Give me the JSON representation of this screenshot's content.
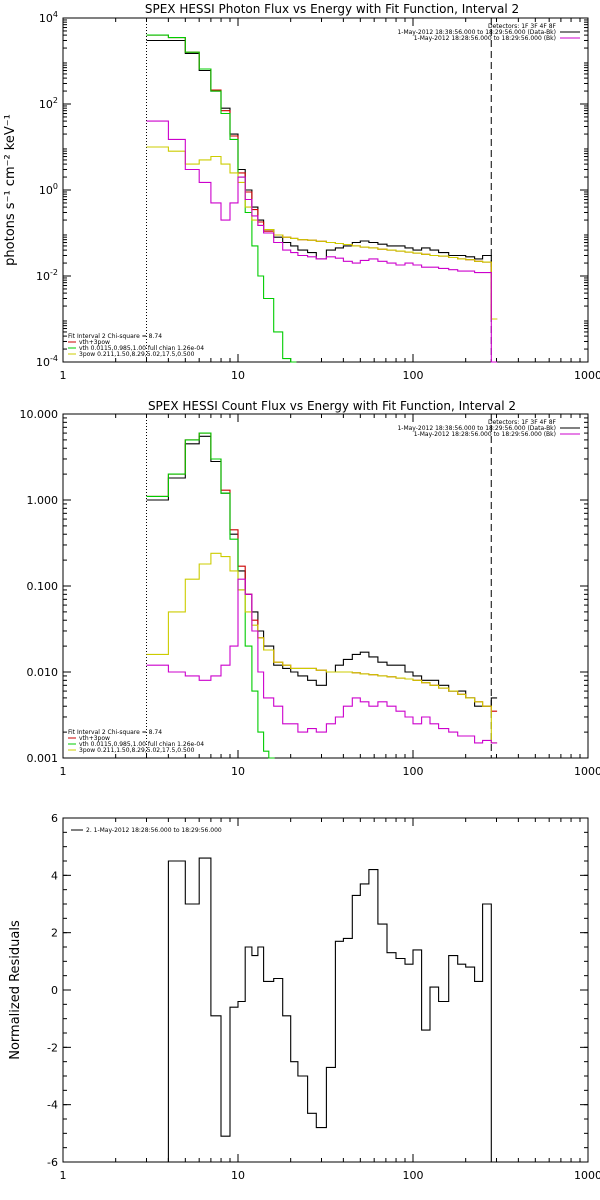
{
  "chart_data": [
    {
      "type": "line",
      "title": "SPEX HESSI Photon Flux vs Energy with Fit Function, Interval 2",
      "ylabel": "photons s⁻¹ cm⁻² keV⁻¹",
      "xlabel": "",
      "xscale": "log",
      "yscale": "log",
      "xlim": [
        1,
        1000
      ],
      "ylim": [
        0.0001,
        10000
      ],
      "x_ticks": [
        "1",
        "10",
        "100",
        "1000"
      ],
      "y_ticks": [
        {
          "value": 0.0001,
          "base": "10",
          "exp": "-4"
        },
        {
          "value": 0.01,
          "base": "10",
          "exp": "-2"
        },
        {
          "value": 1,
          "base": "10",
          "exp": "0"
        },
        {
          "value": 100,
          "base": "10",
          "exp": "2"
        },
        {
          "value": 10000,
          "base": "10",
          "exp": "4"
        }
      ],
      "vlines": [
        {
          "x": 3,
          "style": "dotted",
          "color": "#000000"
        },
        {
          "x": 280,
          "style": "dashed",
          "color": "#000000"
        }
      ],
      "legend_top": [
        {
          "text": "Detectors: 1F 3F 4F 8F",
          "color": ""
        },
        {
          "text": "1-May-2012 18:38:56.000 to 18:29:56.000 (Data-Bk)",
          "color": "#000000"
        },
        {
          "text": "1-May-2012 18:28:56.000 to 18:29:56.000 (Bk)",
          "color": "#cc00cc"
        }
      ],
      "legend_bottom": [
        {
          "text": "Fit Interval 2   Chi-square = 8.74",
          "color": ""
        },
        {
          "text": "vth+3pow",
          "color": "#cc0000"
        },
        {
          "text": "vth 0.0115,0.985,1.00  full chian 1.26e-04",
          "color": "#00cc00"
        },
        {
          "text": "3pow 0.211,1.50,8.29,5.02,17.5,0.500",
          "color": "#cccc00"
        }
      ],
      "series": [
        {
          "name": "Data-Bk",
          "color": "#000000",
          "x": [
            3,
            4,
            5,
            6,
            7,
            8,
            9,
            10,
            11,
            12,
            13,
            14,
            16,
            18,
            20,
            22,
            25,
            28,
            32,
            36,
            40,
            45,
            50,
            56,
            63,
            71,
            80,
            90,
            100,
            112,
            125,
            140,
            160,
            180,
            200,
            225,
            250,
            280
          ],
          "y": [
            3000,
            3000,
            1500,
            600,
            200,
            80,
            20,
            3,
            1,
            0.4,
            0.2,
            0.12,
            0.08,
            0.06,
            0.05,
            0.04,
            0.035,
            0.025,
            0.04,
            0.045,
            0.05,
            0.06,
            0.065,
            0.06,
            0.055,
            0.05,
            0.05,
            0.045,
            0.04,
            0.045,
            0.04,
            0.035,
            0.03,
            0.03,
            0.028,
            0.025,
            0.03,
            0.001
          ]
        },
        {
          "name": "vth+3pow",
          "color": "#cc0000",
          "x": [
            3,
            4,
            5,
            6,
            7,
            8,
            9,
            10,
            11,
            12,
            13,
            14,
            16,
            18,
            20,
            22,
            25,
            28,
            32,
            36,
            40,
            45,
            50,
            56,
            63,
            71,
            80,
            90,
            100,
            112,
            125,
            140,
            160,
            180,
            200,
            225,
            250,
            280
          ],
          "y": [
            4000,
            3500,
            1600,
            650,
            210,
            70,
            18,
            2.5,
            0.9,
            0.35,
            0.18,
            0.11,
            0.09,
            0.08,
            0.075,
            0.07,
            0.068,
            0.064,
            0.06,
            0.057,
            0.054,
            0.05,
            0.047,
            0.045,
            0.042,
            0.04,
            0.038,
            0.036,
            0.034,
            0.032,
            0.03,
            0.029,
            0.027,
            0.025,
            0.024,
            0.022,
            0.021,
            0.001
          ]
        },
        {
          "name": "vth",
          "color": "#00cc00",
          "x": [
            3,
            4,
            5,
            6,
            7,
            8,
            9,
            10,
            11,
            12,
            13,
            14,
            16,
            18,
            20
          ],
          "y": [
            4000,
            3500,
            1600,
            650,
            200,
            60,
            15,
            2,
            0.3,
            0.05,
            0.01,
            0.003,
            0.0005,
            0.00012,
            0.0001
          ]
        },
        {
          "name": "3pow",
          "color": "#cccc00",
          "x": [
            3,
            4,
            5,
            6,
            7,
            8,
            9,
            10,
            11,
            12,
            13,
            14,
            16,
            18,
            20,
            22,
            25,
            28,
            32,
            36,
            40,
            45,
            50,
            56,
            63,
            71,
            80,
            90,
            100,
            112,
            125,
            140,
            160,
            180,
            200,
            225,
            250,
            280
          ],
          "y": [
            10,
            8,
            4,
            5,
            6,
            4,
            2.5,
            1.5,
            0.4,
            0.2,
            0.15,
            0.12,
            0.09,
            0.08,
            0.075,
            0.07,
            0.068,
            0.064,
            0.06,
            0.057,
            0.054,
            0.05,
            0.047,
            0.045,
            0.042,
            0.04,
            0.038,
            0.036,
            0.034,
            0.032,
            0.03,
            0.029,
            0.027,
            0.025,
            0.024,
            0.022,
            0.021,
            0.001
          ]
        },
        {
          "name": "Bk",
          "color": "#cc00cc",
          "x": [
            3,
            4,
            5,
            6,
            7,
            8,
            9,
            10,
            11,
            12,
            13,
            14,
            16,
            18,
            20,
            22,
            25,
            28,
            32,
            36,
            40,
            45,
            50,
            56,
            63,
            71,
            80,
            90,
            100,
            112,
            125,
            140,
            160,
            180,
            200,
            225,
            250,
            280
          ],
          "y": [
            40,
            15,
            3,
            1.5,
            0.5,
            0.2,
            0.5,
            2,
            0.6,
            0.25,
            0.15,
            0.1,
            0.06,
            0.04,
            0.035,
            0.03,
            0.028,
            0.025,
            0.028,
            0.026,
            0.022,
            0.02,
            0.023,
            0.025,
            0.022,
            0.02,
            0.018,
            0.02,
            0.018,
            0.016,
            0.016,
            0.015,
            0.014,
            0.013,
            0.013,
            0.012,
            0.012,
            0.0001
          ]
        }
      ]
    },
    {
      "type": "line",
      "title": "SPEX HESSI Count Flux vs Energy with Fit Function, Interval 2",
      "ylabel": "",
      "xlabel": "",
      "xscale": "log",
      "yscale": "log",
      "xlim": [
        1,
        1000
      ],
      "ylim": [
        0.001,
        10
      ],
      "x_ticks": [
        "1",
        "10",
        "100",
        "1000"
      ],
      "y_ticks": [
        {
          "value": 0.001,
          "label": "0.001"
        },
        {
          "value": 0.01,
          "label": "0.010"
        },
        {
          "value": 0.1,
          "label": "0.100"
        },
        {
          "value": 1,
          "label": "1.000"
        },
        {
          "value": 10,
          "label": "10.000"
        }
      ],
      "vlines": [
        {
          "x": 3,
          "style": "dotted",
          "color": "#000000"
        },
        {
          "x": 280,
          "style": "dashed",
          "color": "#000000"
        }
      ],
      "legend_top": [
        {
          "text": "Detectors: 1F 3F 4F 8F",
          "color": ""
        },
        {
          "text": "1-May-2012 18:38:56.000 to 18:29:56.000 (Data-Bk)",
          "color": "#000000"
        },
        {
          "text": "1-May-2012 18:28:56.000 to 18:29:56.000 (Bk)",
          "color": "#cc00cc"
        }
      ],
      "legend_bottom": [
        {
          "text": "Fit Interval 2   Chi-square = 8.74",
          "color": ""
        },
        {
          "text": "vth+3pow",
          "color": "#cc0000"
        },
        {
          "text": "vth 0.0115,0.985,1.00  full chian 1.26e-04",
          "color": "#00cc00"
        },
        {
          "text": "3pow 0.211,1.50,8.29,5.02,17.5,0.500",
          "color": "#cccc00"
        }
      ],
      "series": [
        {
          "name": "Data-Bk",
          "color": "#000000",
          "x": [
            3,
            4,
            5,
            6,
            7,
            8,
            9,
            10,
            11,
            12,
            13,
            14,
            16,
            18,
            20,
            22,
            25,
            28,
            32,
            36,
            40,
            45,
            50,
            56,
            63,
            71,
            80,
            90,
            100,
            112,
            125,
            140,
            160,
            180,
            200,
            225,
            250,
            280
          ],
          "y": [
            1.0,
            1.8,
            4.5,
            5.5,
            2.8,
            1.2,
            0.4,
            0.15,
            0.08,
            0.05,
            0.03,
            0.02,
            0.012,
            0.011,
            0.01,
            0.009,
            0.008,
            0.007,
            0.01,
            0.012,
            0.014,
            0.016,
            0.017,
            0.015,
            0.013,
            0.012,
            0.012,
            0.01,
            0.009,
            0.008,
            0.008,
            0.007,
            0.006,
            0.006,
            0.005,
            0.004,
            0.004,
            0.005
          ]
        },
        {
          "name": "vth+3pow",
          "color": "#cc0000",
          "x": [
            3,
            4,
            5,
            6,
            7,
            8,
            9,
            10,
            11,
            12,
            13,
            14,
            16,
            18,
            20,
            22,
            25,
            28,
            32,
            36,
            40,
            45,
            50,
            56,
            63,
            71,
            80,
            90,
            100,
            112,
            125,
            140,
            160,
            180,
            200,
            225,
            250,
            280
          ],
          "y": [
            1.1,
            2.0,
            5.0,
            6.0,
            3.0,
            1.3,
            0.45,
            0.17,
            0.08,
            0.04,
            0.025,
            0.018,
            0.013,
            0.012,
            0.011,
            0.011,
            0.011,
            0.0105,
            0.01,
            0.01,
            0.01,
            0.0098,
            0.0095,
            0.0093,
            0.009,
            0.0088,
            0.0085,
            0.0083,
            0.008,
            0.0075,
            0.007,
            0.0065,
            0.006,
            0.0055,
            0.005,
            0.0045,
            0.004,
            0.0035
          ]
        },
        {
          "name": "vth",
          "color": "#00cc00",
          "x": [
            3,
            4,
            5,
            6,
            7,
            8,
            9,
            10,
            11,
            12,
            13,
            14,
            15
          ],
          "y": [
            1.1,
            2.0,
            5.0,
            6.0,
            3.0,
            1.2,
            0.35,
            0.09,
            0.02,
            0.006,
            0.002,
            0.0012,
            0.001
          ]
        },
        {
          "name": "3pow",
          "color": "#cccc00",
          "x": [
            3,
            4,
            5,
            6,
            7,
            8,
            9,
            10,
            11,
            12,
            13,
            14,
            16,
            18,
            20,
            22,
            25,
            28,
            32,
            36,
            40,
            45,
            50,
            56,
            63,
            71,
            80,
            90,
            100,
            112,
            125,
            140,
            160,
            180,
            200,
            225,
            250,
            280
          ],
          "y": [
            0.016,
            0.05,
            0.12,
            0.18,
            0.24,
            0.22,
            0.15,
            0.09,
            0.05,
            0.035,
            0.025,
            0.018,
            0.013,
            0.012,
            0.011,
            0.011,
            0.011,
            0.0105,
            0.01,
            0.01,
            0.01,
            0.0098,
            0.0095,
            0.0093,
            0.009,
            0.0088,
            0.0085,
            0.0083,
            0.008,
            0.0075,
            0.007,
            0.0065,
            0.006,
            0.0055,
            0.005,
            0.0045,
            0.004,
            0.0015
          ]
        },
        {
          "name": "Bk",
          "color": "#cc00cc",
          "x": [
            3,
            4,
            5,
            6,
            7,
            8,
            9,
            10,
            11,
            12,
            13,
            14,
            16,
            18,
            20,
            22,
            25,
            28,
            32,
            36,
            40,
            45,
            50,
            56,
            63,
            71,
            80,
            90,
            100,
            112,
            125,
            140,
            160,
            180,
            200,
            225,
            250,
            280
          ],
          "y": [
            0.012,
            0.01,
            0.009,
            0.008,
            0.009,
            0.012,
            0.02,
            0.12,
            0.08,
            0.03,
            0.01,
            0.005,
            0.004,
            0.0025,
            0.0025,
            0.002,
            0.0022,
            0.002,
            0.0025,
            0.003,
            0.004,
            0.005,
            0.0045,
            0.004,
            0.0045,
            0.004,
            0.0035,
            0.003,
            0.0025,
            0.003,
            0.0025,
            0.0022,
            0.002,
            0.0018,
            0.0018,
            0.0015,
            0.0016,
            0.0015
          ]
        }
      ]
    },
    {
      "type": "line",
      "title": "",
      "ylabel": "Normalized Residuals",
      "xlabel": "",
      "xscale": "log",
      "yscale": "linear",
      "xlim": [
        1,
        1000
      ],
      "ylim": [
        -6,
        6
      ],
      "x_ticks": [
        "1",
        "10",
        "100",
        "1000"
      ],
      "y_ticks": [
        {
          "value": -6,
          "label": "-6"
        },
        {
          "value": -4,
          "label": "-4"
        },
        {
          "value": -2,
          "label": "-2"
        },
        {
          "value": 0,
          "label": "0"
        },
        {
          "value": 2,
          "label": "2"
        },
        {
          "value": 4,
          "label": "4"
        },
        {
          "value": 6,
          "label": "6"
        }
      ],
      "vlines": [],
      "legend_top": [
        {
          "text": "2.  1-May-2012 18:28:56.000 to 18:29:56.000",
          "color": "#000000"
        }
      ],
      "legend_bottom": [],
      "series": [
        {
          "name": "residuals",
          "color": "#000000",
          "x": [
            2,
            3,
            4,
            5,
            6,
            7,
            8,
            9,
            10,
            11,
            12,
            13,
            14,
            16,
            18,
            20,
            22,
            25,
            28,
            32,
            36,
            40,
            45,
            50,
            56,
            63,
            71,
            80,
            90,
            100,
            112,
            125,
            140,
            160,
            180,
            200,
            225,
            250,
            280
          ],
          "y": [
            -6,
            -6,
            4.5,
            3,
            4.6,
            -0.9,
            -5.1,
            -0.6,
            -0.4,
            1.5,
            1.2,
            1.5,
            0.3,
            0.4,
            -0.9,
            -2.5,
            -3,
            -4.3,
            -4.8,
            -2.7,
            1.7,
            1.8,
            3.3,
            3.7,
            4.2,
            2.3,
            1.3,
            1.1,
            0.9,
            1.4,
            -1.4,
            0.1,
            -0.4,
            1.2,
            0.9,
            0.8,
            0.3,
            3,
            -6
          ]
        }
      ]
    }
  ]
}
